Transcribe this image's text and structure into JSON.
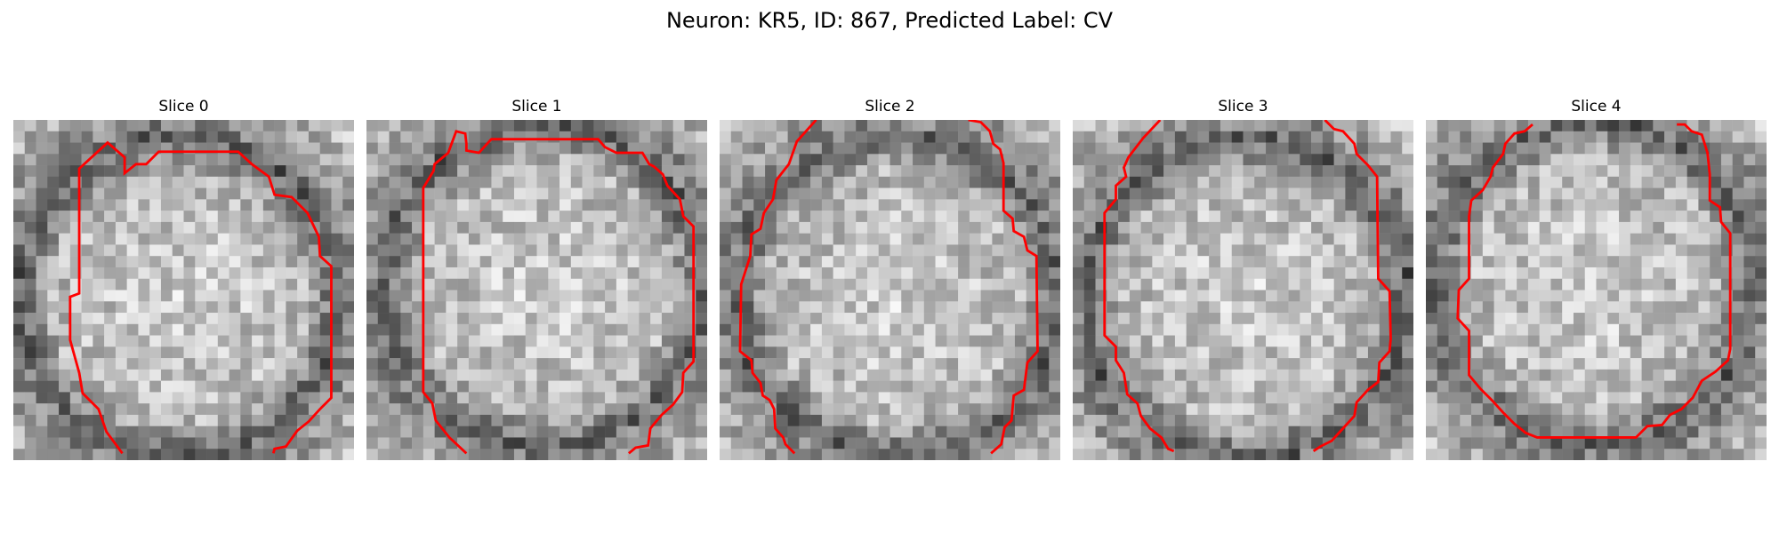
{
  "figure": {
    "title": "Neuron: KR5, ID: 867, Predicted Label: CV",
    "panels": [
      {
        "title": "Slice 0"
      },
      {
        "title": "Slice 1"
      },
      {
        "title": "Slice 2"
      },
      {
        "title": "Slice 3"
      },
      {
        "title": "Slice 4"
      }
    ]
  },
  "colors": {
    "contour": "#ff0000",
    "background": "#ffffff"
  }
}
